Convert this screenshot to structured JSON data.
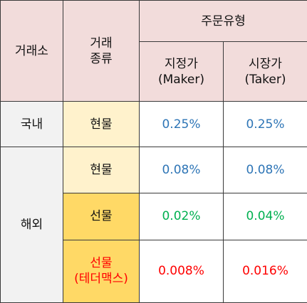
{
  "header": {
    "exchange": "거래소",
    "type_line1": "거래",
    "type_line2": "종류",
    "order_type": "주문유형",
    "maker_line1": "지정가",
    "maker_line2": "(Maker)",
    "taker_line1": "시장가",
    "taker_line2": "(Taker)"
  },
  "rows": [
    {
      "exchange": "국내",
      "kind": "현물",
      "maker": "0.25%",
      "taker": "0.25%"
    },
    {
      "exchange": "해외",
      "kind": "현물",
      "maker": "0.08%",
      "taker": "0.08%"
    },
    {
      "kind": "선물",
      "maker": "0.02%",
      "taker": "0.04%"
    },
    {
      "kind_line1": "선물",
      "kind_line2": "(테더맥스)",
      "maker": "0.008%",
      "taker": "0.016%"
    }
  ],
  "colors": {
    "header_bg": "#f2dcdb",
    "exchange_bg": "#f2f2f2",
    "spot_bg": "#fff2cc",
    "futures_bg": "#ffd966",
    "blue_text": "#2e75b6",
    "green_text": "#00b050",
    "red_text": "#ff0000"
  }
}
